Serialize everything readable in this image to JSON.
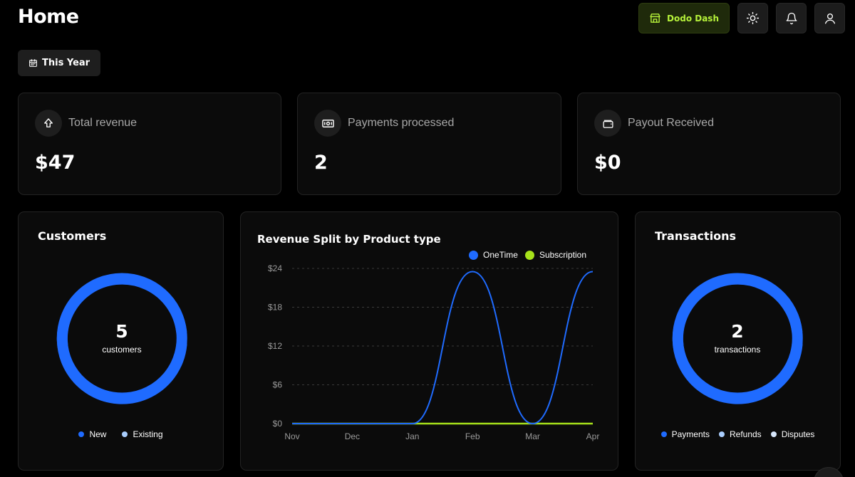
{
  "header": {
    "title": "Home",
    "brand_label": "Dodo Dash"
  },
  "filters": {
    "period_label": "This Year"
  },
  "stats": [
    {
      "label": "Total revenue",
      "value": "$47",
      "icon": "arrow-up-icon"
    },
    {
      "label": "Payments processed",
      "value": "2",
      "icon": "banknote-icon"
    },
    {
      "label": "Payout Received",
      "value": "$0",
      "icon": "wallet-icon"
    }
  ],
  "customers": {
    "title": "Customers",
    "count": "5",
    "unit": "customers",
    "legend": [
      {
        "label": "New",
        "color": "#1f6bff"
      },
      {
        "label": "Existing",
        "color": "#a9cdfd"
      }
    ]
  },
  "transactions": {
    "title": "Transactions",
    "count": "2",
    "unit": "transactions",
    "legend": [
      {
        "label": "Payments",
        "color": "#1f6bff"
      },
      {
        "label": "Refunds",
        "color": "#a9cdfd"
      },
      {
        "label": "Disputes",
        "color": "#d6e6fb"
      }
    ]
  },
  "colors": {
    "accent_blue": "#1f6bff",
    "accent_green": "#a6e11a"
  },
  "chart_data": {
    "type": "line",
    "title": "Revenue Split by Product type",
    "categories": [
      "Nov",
      "Dec",
      "Jan",
      "Feb",
      "Mar",
      "Apr"
    ],
    "y_ticks": [
      "$0",
      "$6",
      "$12",
      "$18",
      "$24"
    ],
    "ylim": [
      0,
      24
    ],
    "series": [
      {
        "name": "OneTime",
        "color": "#1f6bff",
        "values": [
          0,
          0,
          0,
          23.5,
          0,
          23.5
        ]
      },
      {
        "name": "Subscription",
        "color": "#a6e11a",
        "values": [
          0,
          0,
          0,
          0,
          0,
          0
        ]
      }
    ],
    "grid": true,
    "legend_position": "top-right"
  }
}
